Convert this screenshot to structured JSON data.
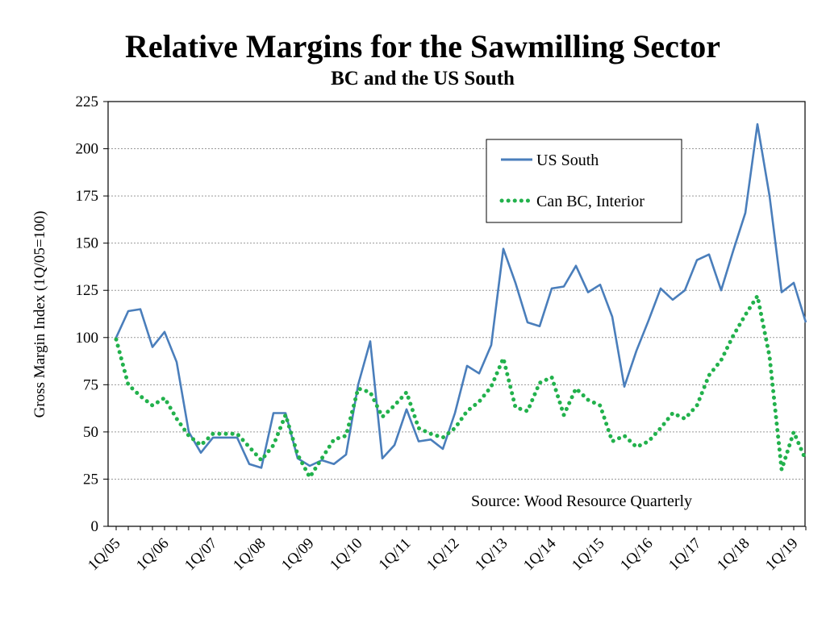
{
  "chart_data": {
    "type": "line",
    "title": "Relative Margins for the Sawmilling Sector",
    "subtitle": "BC and the US South",
    "ylabel": "Gross Margin Index (1Q/05=100)",
    "xlabel": "",
    "ylim": [
      0,
      225
    ],
    "yticks": [
      0,
      25,
      50,
      75,
      100,
      125,
      150,
      175,
      200,
      225
    ],
    "xticks": [
      "1Q/05",
      "1Q/06",
      "1Q/07",
      "1Q/08",
      "1Q/09",
      "1Q/10",
      "1Q/11",
      "1Q/12",
      "1Q/13",
      "1Q/14",
      "1Q/15",
      "1Q/16",
      "1Q/17",
      "1Q/18",
      "1Q/19"
    ],
    "grid": "horizontal dotted",
    "legend_position": "top-right",
    "annotation": "Source: Wood Resource Quarterly",
    "categories": [
      "1Q/05",
      "2Q/05",
      "3Q/05",
      "4Q/05",
      "1Q/06",
      "2Q/06",
      "3Q/06",
      "4Q/06",
      "1Q/07",
      "2Q/07",
      "3Q/07",
      "4Q/07",
      "1Q/08",
      "2Q/08",
      "3Q/08",
      "4Q/08",
      "1Q/09",
      "2Q/09",
      "3Q/09",
      "4Q/09",
      "1Q/10",
      "2Q/10",
      "3Q/10",
      "4Q/10",
      "1Q/11",
      "2Q/11",
      "3Q/11",
      "4Q/11",
      "1Q/12",
      "2Q/12",
      "3Q/12",
      "4Q/12",
      "1Q/13",
      "2Q/13",
      "3Q/13",
      "4Q/13",
      "1Q/14",
      "2Q/14",
      "3Q/14",
      "4Q/14",
      "1Q/15",
      "2Q/15",
      "3Q/15",
      "4Q/15",
      "1Q/16",
      "2Q/16",
      "3Q/16",
      "4Q/16",
      "1Q/17",
      "2Q/17",
      "3Q/17",
      "4Q/17",
      "1Q/18",
      "2Q/18",
      "3Q/18",
      "4Q/18",
      "1Q/19",
      "2Q/19"
    ],
    "series": [
      {
        "name": "US South",
        "color": "#4a7ebb",
        "style": "solid",
        "values": [
          100,
          114,
          115,
          95,
          103,
          87,
          50,
          39,
          47,
          47,
          47,
          33,
          31,
          60,
          60,
          36,
          32,
          35,
          33,
          38,
          75,
          98,
          36,
          43,
          62,
          45,
          46,
          41,
          60,
          85,
          81,
          96,
          147,
          129,
          108,
          106,
          126,
          127,
          138,
          124,
          128,
          111,
          74,
          93,
          109,
          126,
          120,
          125,
          141,
          144,
          125,
          146,
          166,
          213,
          175,
          124,
          129,
          108
        ]
      },
      {
        "name": "Can BC, Interior",
        "color": "#22b14c",
        "style": "dotted",
        "values": [
          99,
          75,
          69,
          64,
          68,
          57,
          48,
          43,
          49,
          49,
          49,
          42,
          35,
          43,
          59,
          38,
          26,
          36,
          46,
          48,
          73,
          71,
          58,
          64,
          71,
          52,
          49,
          47,
          52,
          61,
          66,
          74,
          89,
          63,
          61,
          76,
          79,
          59,
          73,
          67,
          64,
          45,
          48,
          42,
          45,
          52,
          60,
          57,
          64,
          80,
          88,
          101,
          112,
          122,
          90,
          30,
          50,
          35
        ]
      }
    ]
  }
}
